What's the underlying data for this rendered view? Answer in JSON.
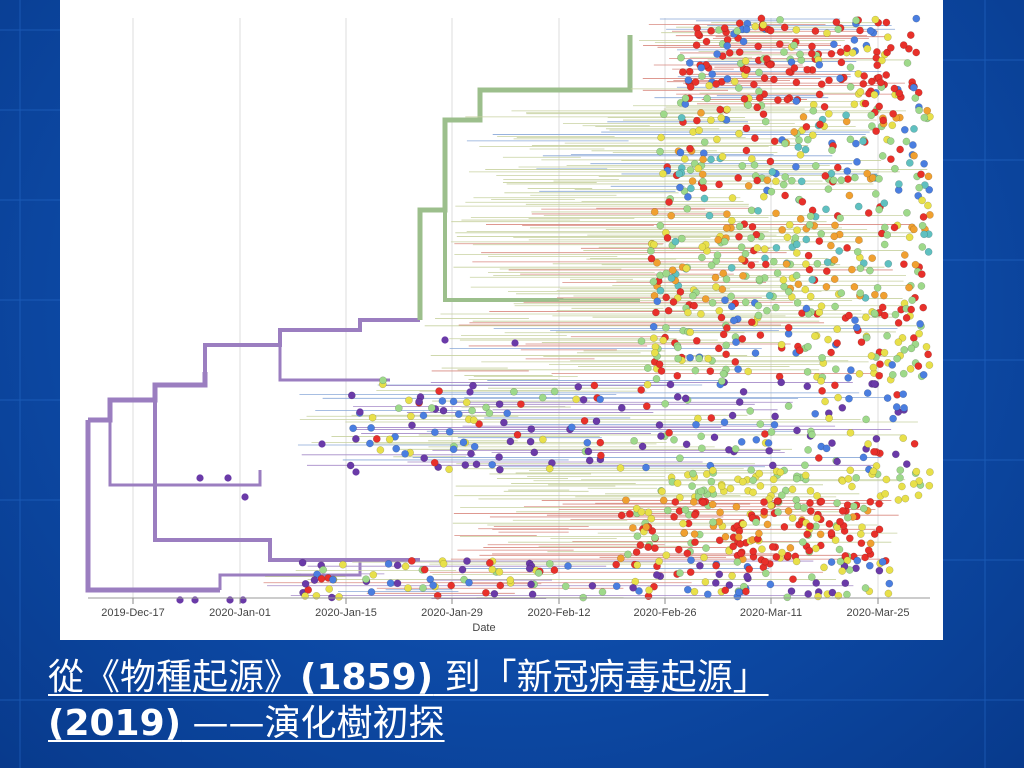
{
  "tree": {
    "x_ticks": [
      "2019-Dec-17",
      "2020-Jan-01",
      "2020-Jan-15",
      "2020-Jan-29",
      "2020-Feb-12",
      "2020-Feb-26",
      "2020-Mar-11",
      "2020-Mar-25"
    ],
    "x_label": "Date",
    "colors": {
      "purple": "#6a3aa8",
      "blue": "#4a7ee0",
      "teal": "#5fc0c0",
      "green": "#9ed98a",
      "yellow": "#e8e04a",
      "orange": "#f0a030",
      "red": "#e8302a",
      "trunk_purple": "#9b7ec0",
      "trunk_green": "#9cbf8c"
    }
  },
  "caption": {
    "line1_a": "從《物種起源》",
    "line1_b": "(1859)",
    "line1_c": " 到「新冠病毒起源」",
    "line2_a": "(2019)",
    "line2_b": " ——演化樹初探"
  }
}
